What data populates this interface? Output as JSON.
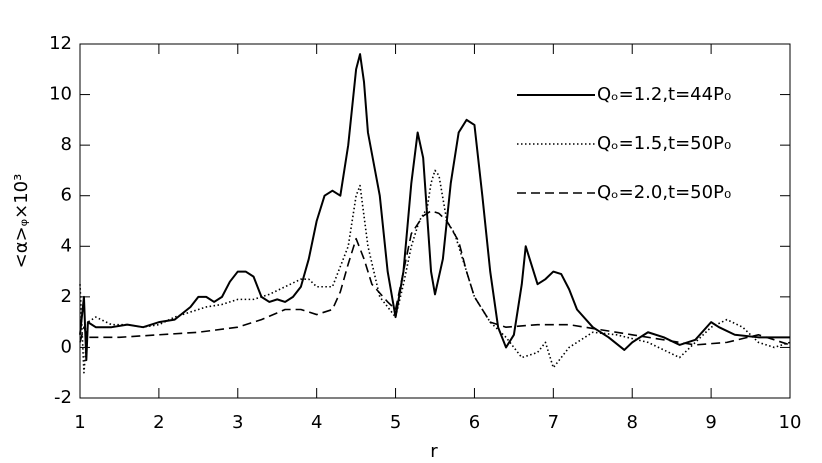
{
  "chart_data": {
    "type": "line",
    "xlabel": "r",
    "ylabel": "<α>ᵩ×10³",
    "xlim": [
      1,
      10
    ],
    "xticks": [
      1,
      2,
      3,
      4,
      5,
      6,
      7,
      8,
      9,
      10
    ],
    "ylim": [
      -2,
      12
    ],
    "yticks": [
      -2,
      0,
      2,
      4,
      6,
      8,
      10,
      12
    ],
    "legend": "upper right",
    "series": [
      {
        "name": "Qₒ=1.2,t=44P₀",
        "color": "#000000",
        "dash": "solid",
        "x": [
          1.0,
          1.05,
          1.08,
          1.1,
          1.2,
          1.4,
          1.6,
          1.8,
          2.0,
          2.2,
          2.4,
          2.5,
          2.6,
          2.7,
          2.8,
          2.9,
          3.0,
          3.1,
          3.2,
          3.3,
          3.4,
          3.5,
          3.6,
          3.7,
          3.8,
          3.9,
          4.0,
          4.1,
          4.2,
          4.3,
          4.4,
          4.5,
          4.55,
          4.6,
          4.65,
          4.8,
          4.9,
          5.0,
          5.1,
          5.2,
          5.28,
          5.35,
          5.45,
          5.5,
          5.6,
          5.7,
          5.8,
          5.9,
          6.0,
          6.1,
          6.2,
          6.3,
          6.4,
          6.5,
          6.6,
          6.65,
          6.7,
          6.8,
          6.9,
          7.0,
          7.1,
          7.2,
          7.3,
          7.5,
          7.7,
          7.9,
          8.0,
          8.2,
          8.4,
          8.6,
          8.8,
          9.0,
          9.1,
          9.3,
          9.6,
          10.0
        ],
        "values": [
          0.5,
          2.0,
          -0.5,
          1.0,
          0.8,
          0.8,
          0.9,
          0.8,
          1.0,
          1.1,
          1.6,
          2.0,
          2.0,
          1.8,
          2.0,
          2.6,
          3.0,
          3.0,
          2.8,
          2.0,
          1.8,
          1.9,
          1.8,
          2.0,
          2.4,
          3.5,
          5.0,
          6.0,
          6.2,
          6.0,
          8.0,
          11.0,
          11.6,
          10.5,
          8.5,
          6.0,
          3.0,
          1.2,
          3.0,
          6.5,
          8.5,
          7.5,
          3.0,
          2.1,
          3.5,
          6.5,
          8.5,
          9.0,
          8.8,
          6.0,
          3.0,
          0.8,
          0.0,
          0.5,
          2.5,
          4.0,
          3.5,
          2.5,
          2.7,
          3.0,
          2.9,
          2.3,
          1.5,
          0.8,
          0.4,
          -0.1,
          0.2,
          0.6,
          0.4,
          0.1,
          0.3,
          1.0,
          0.8,
          0.5,
          0.4,
          0.4
        ]
      },
      {
        "name": "Qₒ=1.5,t=50P₀",
        "color": "#000000",
        "dash": "dotted",
        "x": [
          1.0,
          1.05,
          1.1,
          1.2,
          1.4,
          1.6,
          1.8,
          2.0,
          2.2,
          2.4,
          2.6,
          2.8,
          3.0,
          3.2,
          3.4,
          3.6,
          3.8,
          3.9,
          4.0,
          4.2,
          4.4,
          4.5,
          4.55,
          4.65,
          4.8,
          5.0,
          5.1,
          5.2,
          5.3,
          5.4,
          5.45,
          5.5,
          5.55,
          5.65,
          5.75,
          5.9,
          6.0,
          6.2,
          6.4,
          6.6,
          6.8,
          6.9,
          7.0,
          7.2,
          7.5,
          7.8,
          8.2,
          8.6,
          8.8,
          9.0,
          9.2,
          9.4,
          9.6,
          9.8,
          10.0
        ],
        "values": [
          2.5,
          -1.0,
          1.0,
          1.2,
          0.9,
          0.9,
          0.8,
          0.9,
          1.2,
          1.4,
          1.6,
          1.7,
          1.9,
          1.9,
          2.1,
          2.4,
          2.7,
          2.7,
          2.4,
          2.4,
          4.0,
          6.0,
          6.4,
          4.0,
          2.0,
          1.2,
          2.5,
          4.0,
          5.0,
          5.5,
          6.5,
          7.0,
          6.8,
          5.0,
          4.5,
          3.0,
          2.0,
          1.0,
          0.4,
          -0.4,
          -0.2,
          0.2,
          -0.8,
          0.0,
          0.6,
          0.5,
          0.2,
          -0.4,
          0.2,
          0.8,
          1.1,
          0.8,
          0.2,
          0.0,
          0.2
        ]
      },
      {
        "name": "Qₒ=2.0,t=50P₀",
        "color": "#000000",
        "dash": "dashed",
        "x": [
          1.0,
          1.05,
          1.1,
          1.5,
          2.0,
          2.5,
          3.0,
          3.3,
          3.6,
          3.8,
          4.0,
          4.2,
          4.3,
          4.4,
          4.5,
          4.6,
          4.7,
          4.9,
          5.0,
          5.1,
          5.2,
          5.35,
          5.45,
          5.55,
          5.65,
          5.8,
          5.9,
          6.0,
          6.2,
          6.4,
          6.8,
          7.2,
          7.6,
          8.0,
          8.4,
          8.8,
          9.2,
          9.6,
          10.0
        ],
        "values": [
          0.2,
          0.8,
          0.4,
          0.4,
          0.5,
          0.6,
          0.8,
          1.1,
          1.5,
          1.5,
          1.3,
          1.5,
          2.2,
          3.3,
          4.3,
          3.5,
          2.5,
          1.8,
          1.5,
          3.0,
          4.5,
          5.2,
          5.4,
          5.3,
          5.0,
          4.2,
          3.0,
          2.0,
          1.0,
          0.8,
          0.9,
          0.9,
          0.7,
          0.5,
          0.3,
          0.1,
          0.2,
          0.5,
          0.1
        ]
      }
    ]
  }
}
